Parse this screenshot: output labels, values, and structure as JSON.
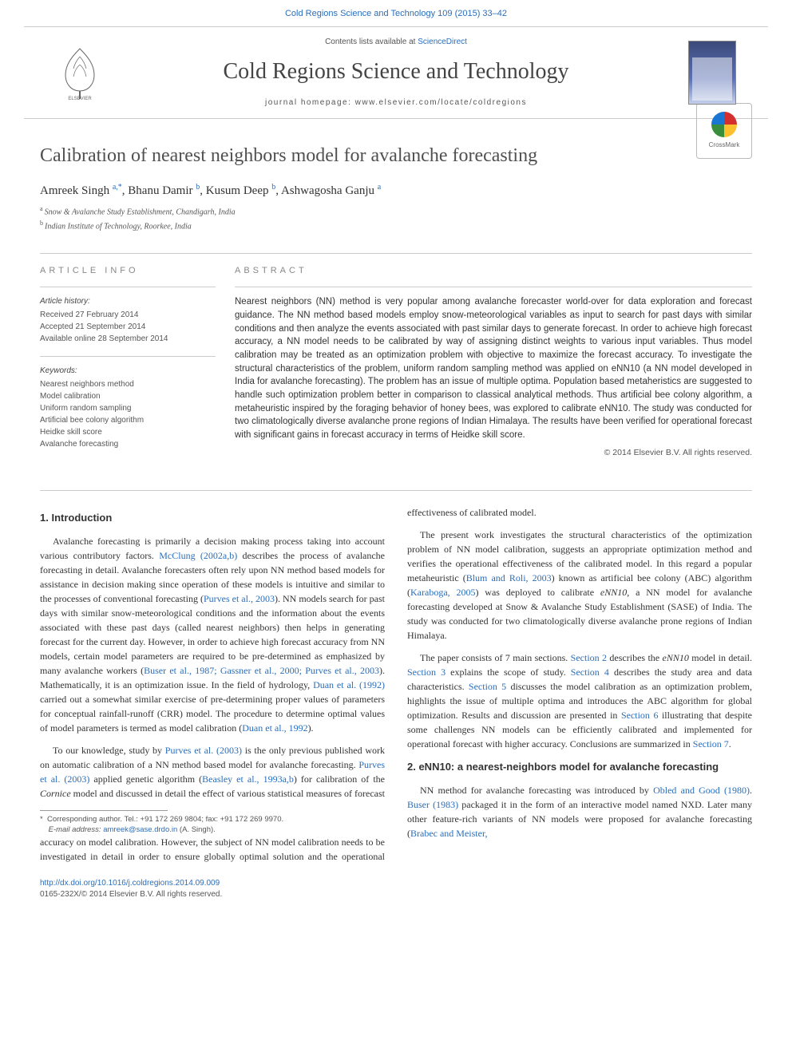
{
  "colors": {
    "link": "#2a6ebb",
    "text": "#333333",
    "muted": "#555555",
    "rule": "#cccccc",
    "background": "#ffffff"
  },
  "typography": {
    "body_font": "Georgia, 'Times New Roman', serif",
    "sans_font": "Arial, sans-serif",
    "title_size_pt": 24,
    "journal_size_pt": 28,
    "abstract_size_pt": 11.5,
    "body_size_pt": 12
  },
  "top_citation": "Cold Regions Science and Technology 109 (2015) 33–42",
  "masthead": {
    "contents_prefix": "Contents lists available at ",
    "contents_link": "ScienceDirect",
    "journal_name": "Cold Regions Science and Technology",
    "homepage_label": "journal homepage: www.elsevier.com/locate/coldregions",
    "publisher_icon": "elsevier-tree-icon",
    "cover_icon": "journal-cover-icon"
  },
  "crossmark": {
    "label": "CrossMark"
  },
  "article": {
    "title": "Calibration of nearest neighbors model for avalanche forecasting",
    "authors_html": "Amreek Singh <span class='sup author-link'>a,*</span>, Bhanu Damir <span class='sup'>b</span>, Kusum Deep <span class='sup'>b</span>, Ashwagosha Ganju <span class='sup'>a</span>",
    "affiliations": [
      {
        "sup": "a",
        "text": "Snow & Avalanche Study Establishment, Chandigarh, India"
      },
      {
        "sup": "b",
        "text": "Indian Institute of Technology, Roorkee, India"
      }
    ]
  },
  "article_info": {
    "heading": "article info",
    "history_label": "Article history:",
    "received": "Received 27 February 2014",
    "accepted": "Accepted 21 September 2014",
    "available": "Available online 28 September 2014",
    "keywords_label": "Keywords:",
    "keywords": [
      "Nearest neighbors method",
      "Model calibration",
      "Uniform random sampling",
      "Artificial bee colony algorithm",
      "Heidke skill score",
      "Avalanche forecasting"
    ]
  },
  "abstract": {
    "heading": "abstract",
    "text": "Nearest neighbors (NN) method is very popular among avalanche forecaster world-over for data exploration and forecast guidance. The NN method based models employ snow-meteorological variables as input to search for past days with similar conditions and then analyze the events associated with past similar days to generate forecast. In order to achieve high forecast accuracy, a NN model needs to be calibrated by way of assigning distinct weights to various input variables. Thus model calibration may be treated as an optimization problem with objective to maximize the forecast accuracy. To investigate the structural characteristics of the problem, uniform random sampling method was applied on eNN10 (a NN model developed in India for avalanche forecasting). The problem has an issue of multiple optima. Population based metaheristics are suggested to handle such optimization problem better in comparison to classical analytical methods. Thus artificial bee colony algorithm, a metaheuristic inspired by the foraging behavior of honey bees, was explored to calibrate eNN10. The study was conducted for two climatologically diverse avalanche prone regions of Indian Himalaya. The results have been verified for operational forecast with significant gains in forecast accuracy in terms of Heidke skill score.",
    "copyright": "© 2014 Elsevier B.V. All rights reserved."
  },
  "sections": {
    "s1_title": "1. Introduction",
    "s1_p1": "Avalanche forecasting is primarily a decision making process taking into account various contributory factors. <span class='ref'>McClung (2002a,b)</span> describes the process of avalanche forecasting in detail. Avalanche forecasters often rely upon NN method based models for assistance in decision making since operation of these models is intuitive and similar to the processes of conventional forecasting (<span class='ref'>Purves et al., 2003</span>). NN models search for past days with similar snow-meteorological conditions and the information about the events associated with these past days (called nearest neighbors) then helps in generating forecast for the current day. However, in order to achieve high forecast accuracy from NN models, certain model parameters are required to be pre-determined as emphasized by many avalanche workers (<span class='ref'>Buser et al., 1987; Gassner et al., 2000; Purves et al., 2003</span>). Mathematically, it is an optimization issue. In the field of hydrology, <span class='ref'>Duan et al. (1992)</span> carried out a somewhat similar exercise of pre-determining proper values of parameters for conceptual rainfall-runoff (CRR) model. The procedure to determine optimal values of model parameters is termed as model calibration (<span class='ref'>Duan et al., 1992</span>).",
    "s1_p2": "To our knowledge, study by <span class='ref'>Purves et al. (2003)</span> is the only previous published work on automatic calibration of a NN method based model for avalanche forecasting. <span class='ref'>Purves et al. (2003)</span> applied genetic algorithm (<span class='ref'>Beasley et al., 1993a,b</span>) for calibration of the <span class='ital'>Cornice</span> model and discussed in detail the effect of various statistical measures of forecast",
    "s1_p3": "accuracy on model calibration. However, the subject of NN model calibration needs to be investigated in detail in order to ensure globally optimal solution and the operational effectiveness of calibrated model.",
    "s1_p4": "The present work investigates the structural characteristics of the optimization problem of NN model calibration, suggests an appropriate optimization method and verifies the operational effectiveness of the calibrated model. In this regard a popular metaheuristic (<span class='ref'>Blum and Roli, 2003</span>) known as artificial bee colony (ABC) algorithm (<span class='ref'>Karaboga, 2005</span>) was deployed to calibrate <span class='ital'>eNN10</span>, a NN model for avalanche forecasting developed at Snow & Avalanche Study Establishment (SASE) of India. The study was conducted for two climatologically diverse avalanche prone regions of Indian Himalaya.",
    "s1_p5": "The paper consists of 7 main sections. <span class='ref'>Section 2</span> describes the <span class='ital'>eNN10</span> model in detail. <span class='ref'>Section 3</span> explains the scope of study. <span class='ref'>Section 4</span> describes the study area and data characteristics. <span class='ref'>Section 5</span> discusses the model calibration as an optimization problem, highlights the issue of multiple optima and introduces the ABC algorithm for global optimization. Results and discussion are presented in <span class='ref'>Section 6</span> illustrating that despite some challenges NN models can be efficiently calibrated and implemented for operational forecast with higher accuracy. Conclusions are summarized in <span class='ref'>Section 7</span>.",
    "s2_title": "2. eNN10: a nearest-neighbors model for avalanche forecasting",
    "s2_p1": "NN method for avalanche forecasting was introduced by <span class='ref'>Obled and Good (1980)</span>. <span class='ref'>Buser (1983)</span> packaged it in the form of an interactive model named NXD. Later many other feature-rich variants of NN models were proposed for avalanche forecasting (<span class='ref'>Brabec and Meister,</span>"
  },
  "corresponding": {
    "marker": "*",
    "text": "Corresponding author. Tel.: +91 172 269 9804; fax: +91 172 269 9970.",
    "email_label": "E-mail address:",
    "email": "amreek@sase.drdo.in",
    "email_who": "(A. Singh)."
  },
  "footer": {
    "doi": "http://dx.doi.org/10.1016/j.coldregions.2014.09.009",
    "issn_line": "0165-232X/© 2014 Elsevier B.V. All rights reserved."
  }
}
